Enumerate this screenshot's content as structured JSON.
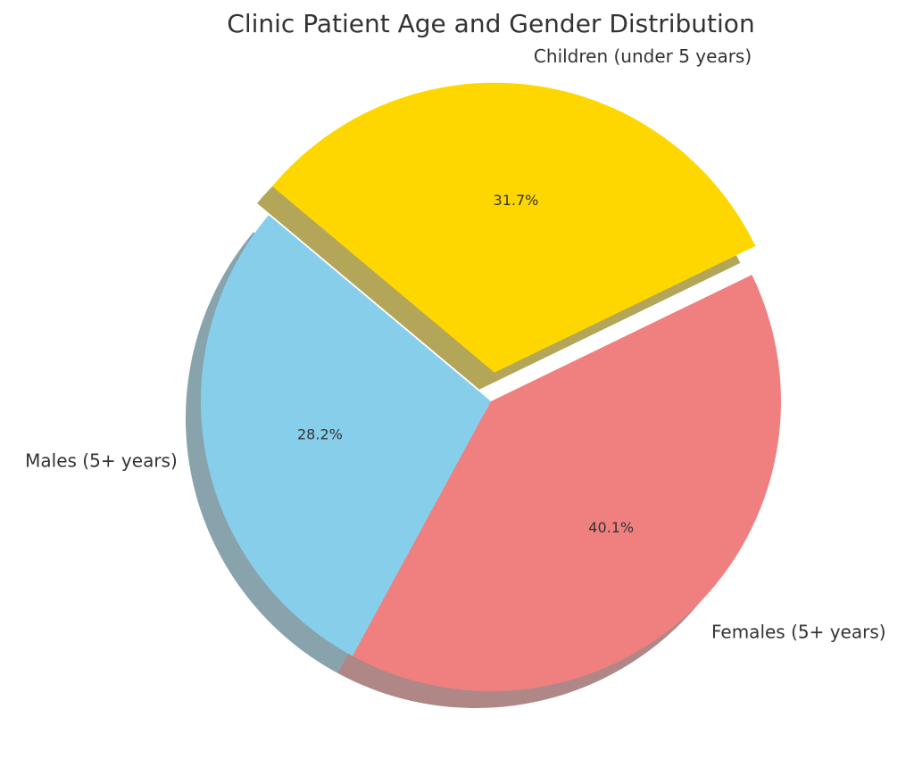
{
  "chart_data": {
    "type": "pie",
    "title": "Clinic Patient Age and Gender Distribution",
    "start_angle_deg": 140,
    "direction": "counterclockwise",
    "shadow": true,
    "slices": [
      {
        "label": "Males (5+ years)",
        "value": 28.2,
        "pct_label": "28.2%",
        "color": "#87CEEB",
        "explode": 0
      },
      {
        "label": "Females (5+ years)",
        "value": 40.1,
        "pct_label": "40.1%",
        "color": "#F08080",
        "explode": 0
      },
      {
        "label": "Children (under 5 years)",
        "value": 31.7,
        "pct_label": "31.7%",
        "color": "#FFD700",
        "explode": 0.1
      }
    ]
  }
}
